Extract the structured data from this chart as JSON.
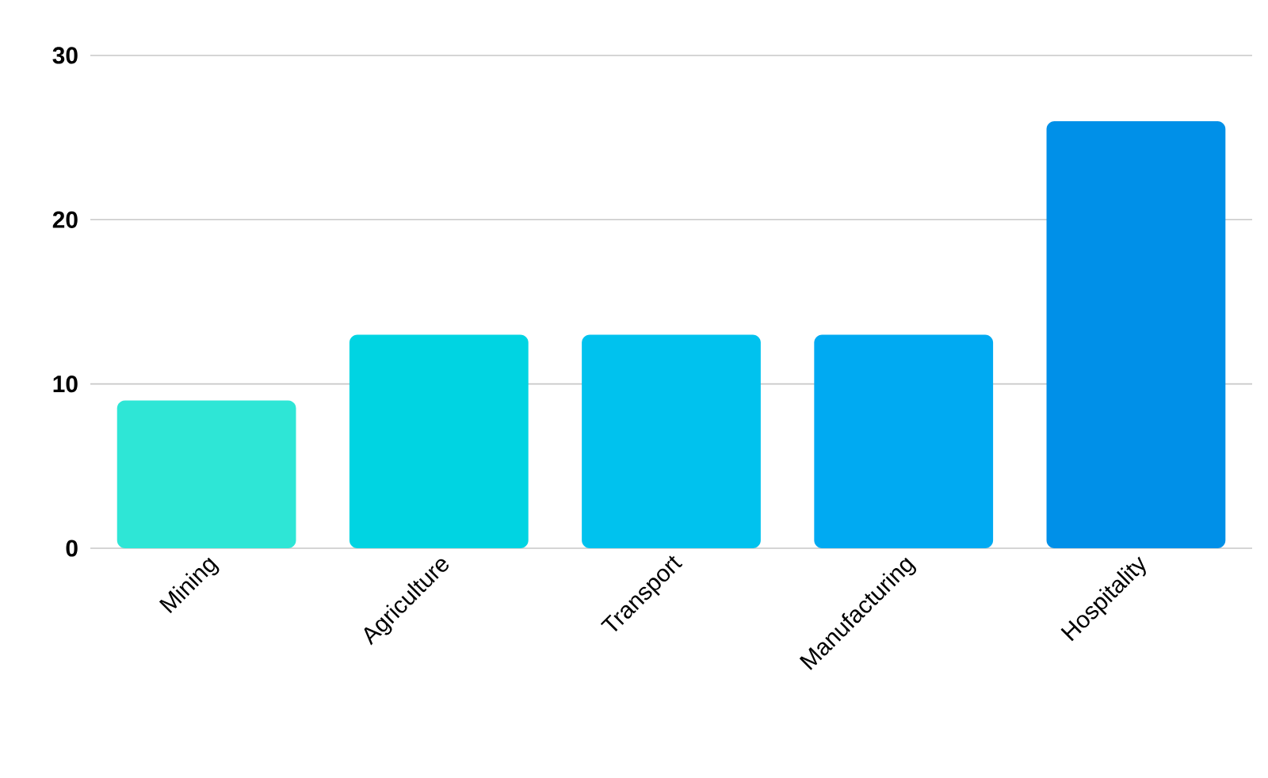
{
  "chart_data": {
    "type": "bar",
    "categories": [
      "Mining",
      "Agriculture",
      "Transport",
      "Manufacturing",
      "Hospitality"
    ],
    "values": [
      9,
      13,
      13,
      13,
      26
    ],
    "colors": [
      "#2ee6d6",
      "#00d4e2",
      "#00c2ee",
      "#00aaf2",
      "#0090e8"
    ],
    "ylim": [
      0,
      30
    ],
    "yticks": [
      0,
      10,
      20,
      30
    ],
    "grid": "y"
  }
}
